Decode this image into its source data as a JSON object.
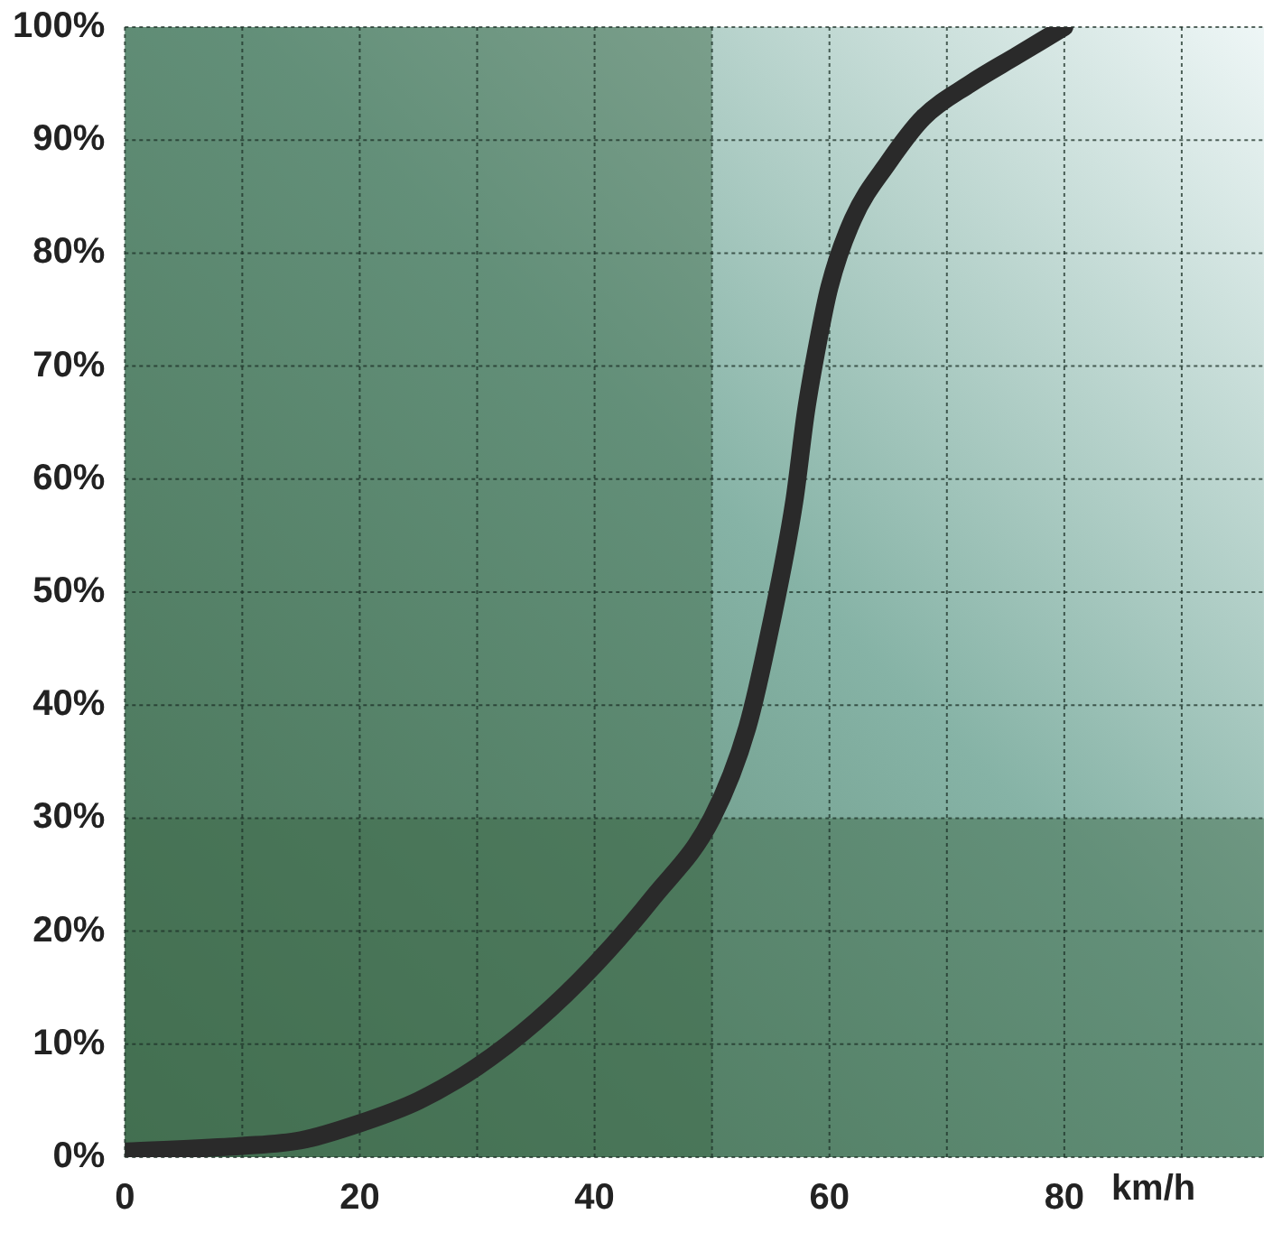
{
  "chart_data": {
    "type": "line",
    "xlabel": "km/h",
    "x": [
      0,
      10,
      15,
      20,
      25,
      30,
      35,
      40,
      45,
      50,
      53,
      55,
      57,
      58,
      59,
      60,
      62,
      65,
      68,
      72,
      76,
      80
    ],
    "series": [
      {
        "color": "#2a2a2a",
        "values": [
          0.5,
          1,
          1.5,
          3,
          5,
          8,
          12,
          17,
          23,
          30,
          38,
          47,
          58,
          66,
          72,
          77,
          83,
          88,
          92,
          95,
          97.5,
          100
        ]
      }
    ],
    "xlim": [
      0,
      97
    ],
    "xticks": [
      0,
      {
        "value": 10,
        "label": null
      },
      20,
      {
        "value": 30,
        "label": null
      },
      40,
      {
        "value": 50,
        "label": null
      },
      60,
      {
        "value": 70,
        "label": null
      },
      80,
      {
        "value": 90,
        "label": null
      }
    ],
    "ylim": [
      0,
      100
    ],
    "yticks": [
      {
        "value": 0,
        "label": "0%"
      },
      {
        "value": 10,
        "label": "10%"
      },
      {
        "value": 20,
        "label": "20%"
      },
      {
        "value": 30,
        "label": "30%"
      },
      {
        "value": 40,
        "label": "40%"
      },
      {
        "value": 50,
        "label": "50%"
      },
      {
        "value": 60,
        "label": "60%"
      },
      {
        "value": 70,
        "label": "70%"
      },
      {
        "value": 80,
        "label": "80%"
      },
      {
        "value": 90,
        "label": "90%"
      },
      {
        "value": 100,
        "label": "100%"
      }
    ],
    "bands": [
      {
        "axis": "x",
        "from": 0,
        "to": 50,
        "color": "#3f6b4b"
      },
      {
        "axis": "y",
        "from": 0,
        "to": 30,
        "color": "#3f6b4b"
      }
    ],
    "grid": true,
    "legend": false,
    "marker": "none",
    "line_style": "solid"
  }
}
